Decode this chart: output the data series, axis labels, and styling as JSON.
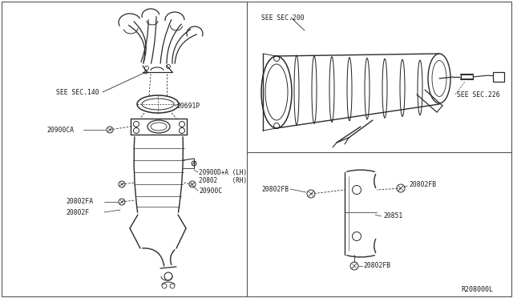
{
  "bg_color": "#ffffff",
  "line_color": "#2a2a2a",
  "fig_width": 6.4,
  "fig_height": 3.72,
  "dpi": 100,
  "ref_num": "R208000L",
  "labels": {
    "see_sec_140": "SEE SEC.140",
    "see_sec_200": "SEE SEC.200",
    "see_sec_226": "SEE SEC.226",
    "p20691P": "20691P",
    "p20900CA": "20900CA",
    "p20900D_LH": "20900D+A (LH)",
    "p20802_RH": "20802    (RH)",
    "p20900C": "20900C",
    "p20802FA": "20802FA",
    "p20802F": "20802F",
    "p20802FB_left": "20802FB",
    "p20802FB_right": "20802FB",
    "p20802FB_bottom": "20802FB",
    "p20851": "20851"
  }
}
